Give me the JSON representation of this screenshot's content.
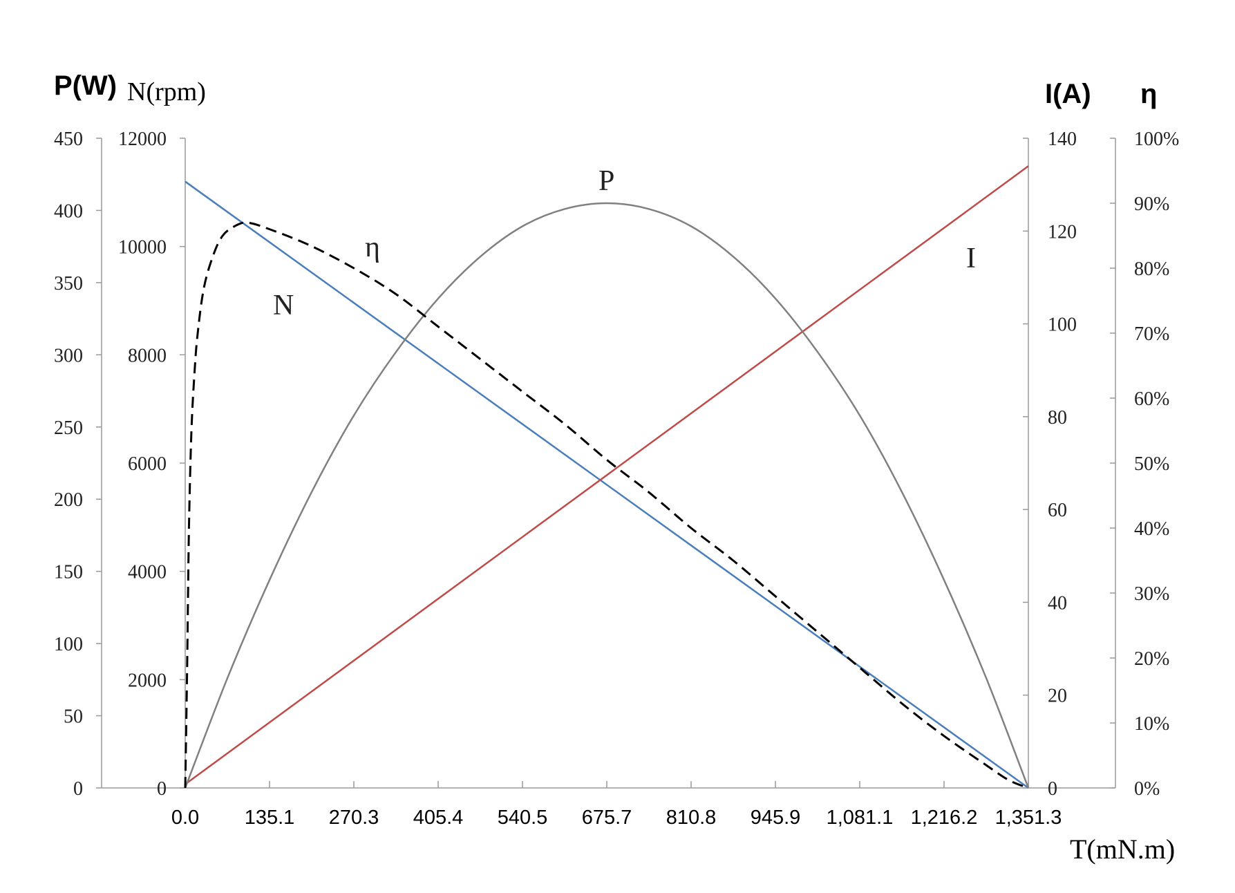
{
  "chart_data": {
    "type": "line",
    "x": {
      "label": "T(mN.m)",
      "ticks": [
        "0.0",
        "135.1",
        "270.3",
        "405.4",
        "540.5",
        "675.7",
        "810.8",
        "945.9",
        "1,081.1",
        "1,216.2",
        "1,351.3"
      ],
      "range": [
        0,
        1351.3
      ]
    },
    "axes": {
      "power": {
        "label": "P(W)",
        "range": [
          0,
          450
        ],
        "ticks": [
          "0",
          "50",
          "100",
          "150",
          "200",
          "250",
          "300",
          "350",
          "400",
          "450"
        ]
      },
      "speed": {
        "label": "N(rpm)",
        "range": [
          0,
          12000
        ],
        "ticks": [
          "0",
          "2000",
          "4000",
          "6000",
          "8000",
          "10000",
          "12000"
        ]
      },
      "current": {
        "label": "I(A)",
        "range": [
          0,
          140
        ],
        "ticks": [
          "0",
          "20",
          "40",
          "60",
          "80",
          "100",
          "120",
          "140"
        ]
      },
      "efficiency": {
        "label": "η",
        "range": [
          0,
          100
        ],
        "ticks": [
          "0%",
          "10%",
          "20%",
          "30%",
          "40%",
          "50%",
          "60%",
          "70%",
          "80%",
          "90%",
          "100%"
        ]
      }
    },
    "series": [
      {
        "name": "N",
        "axis": "speed",
        "color": "#4a7ebb",
        "style": "solid",
        "points": [
          [
            0,
            11200
          ],
          [
            1351.3,
            0
          ]
        ]
      },
      {
        "name": "I",
        "axis": "current",
        "color": "#be4b48",
        "style": "solid",
        "points": [
          [
            0,
            0.8
          ],
          [
            1351.3,
            134
          ]
        ]
      },
      {
        "name": "P",
        "axis": "power",
        "color": "#808080",
        "style": "solid",
        "points": [
          [
            0,
            0
          ],
          [
            67.6,
            76
          ],
          [
            135.1,
            144
          ],
          [
            202.7,
            205
          ],
          [
            270.3,
            258
          ],
          [
            337.8,
            302
          ],
          [
            405.4,
            339
          ],
          [
            473.0,
            368
          ],
          [
            540.5,
            389
          ],
          [
            608.1,
            401
          ],
          [
            675.7,
            405
          ],
          [
            743.2,
            401
          ],
          [
            810.8,
            389
          ],
          [
            878.4,
            368
          ],
          [
            945.9,
            339
          ],
          [
            1013.5,
            302
          ],
          [
            1081.1,
            258
          ],
          [
            1148.6,
            205
          ],
          [
            1216.2,
            144
          ],
          [
            1283.8,
            76
          ],
          [
            1351.3,
            0
          ]
        ]
      },
      {
        "name": "η",
        "axis": "efficiency",
        "color": "#000000",
        "style": "dashed",
        "points": [
          [
            0,
            0
          ],
          [
            3,
            18
          ],
          [
            6,
            40
          ],
          [
            10,
            55
          ],
          [
            15,
            64
          ],
          [
            20,
            70
          ],
          [
            30,
            77
          ],
          [
            45,
            82
          ],
          [
            60,
            85
          ],
          [
            80,
            86.5
          ],
          [
            100,
            87
          ],
          [
            135.1,
            86
          ],
          [
            200,
            83.5
          ],
          [
            270.3,
            80
          ],
          [
            337.8,
            76
          ],
          [
            405.4,
            71
          ],
          [
            473.0,
            66
          ],
          [
            540.5,
            61
          ],
          [
            608.1,
            56
          ],
          [
            675.7,
            50.5
          ],
          [
            743.2,
            45.5
          ],
          [
            810.8,
            40
          ],
          [
            878.4,
            35
          ],
          [
            945.9,
            29.5
          ],
          [
            1013.5,
            24
          ],
          [
            1081.1,
            18.5
          ],
          [
            1148.6,
            13
          ],
          [
            1216.2,
            8
          ],
          [
            1283.8,
            3.5
          ],
          [
            1320,
            1.2
          ],
          [
            1351.3,
            0
          ]
        ]
      }
    ],
    "annotations": [
      "P",
      "η",
      "N",
      "I"
    ]
  }
}
